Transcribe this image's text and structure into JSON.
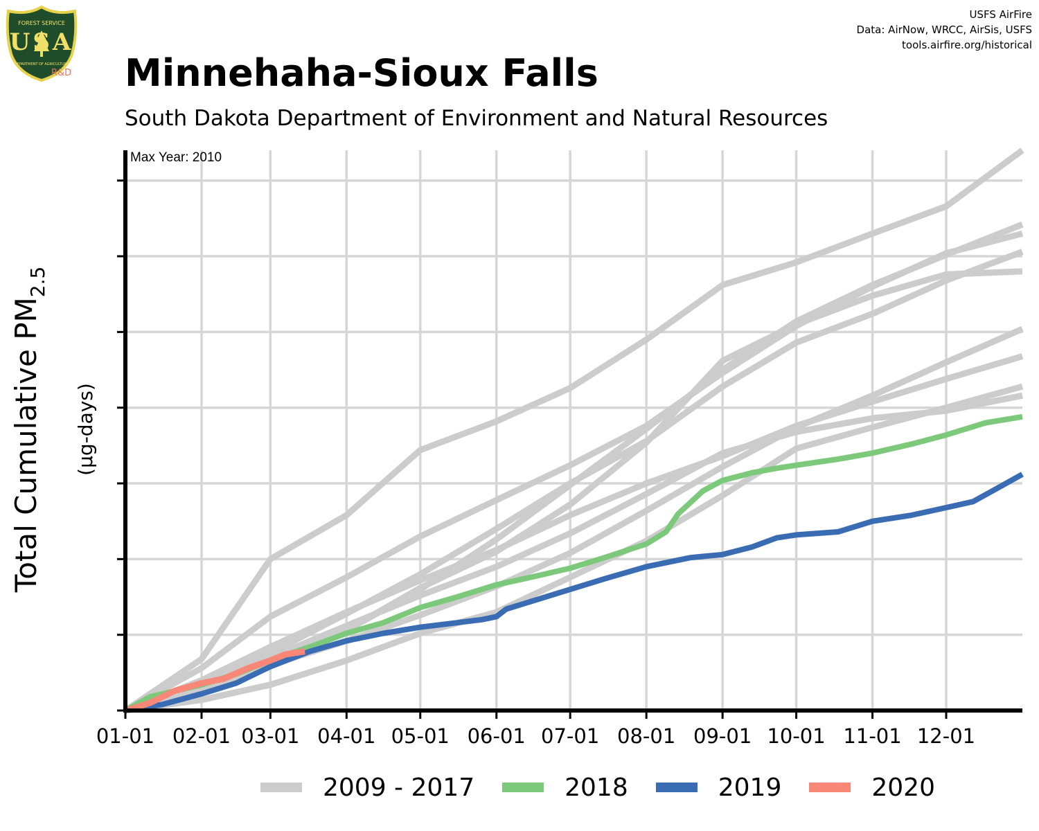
{
  "header": {
    "title": "Minnehaha-Sioux Falls",
    "subtitle": "South Dakota Department of Environment and Natural Resources",
    "credits": [
      "USFS AirFire",
      "Data: AirNow, WRCC, AirSis, USFS",
      "tools.airfire.org/historical"
    ]
  },
  "logo": {
    "top_text": "FOREST SERVICE",
    "letters": "USA",
    "bottom_text": "DEPARTMENT OF AGRICULTURE",
    "badge": "R&D"
  },
  "colors": {
    "history": "#cccccc",
    "y2018": "#7dc97b",
    "y2019": "#3a6cb3",
    "y2020": "#f98778",
    "grid": "#d6d6d6",
    "axis": "#000000"
  },
  "chart_data": {
    "type": "line",
    "annotation": "Max Year: 2010",
    "ylabel": "Total Cumulative PM2.5",
    "ylabel_main": "Total Cumulative PM",
    "ylabel_sub": "2.5",
    "yunits": "(µg-days)",
    "xticks": [
      "01-01",
      "02-01",
      "03-01",
      "04-01",
      "05-01",
      "06-01",
      "07-01",
      "08-01",
      "09-01",
      "10-01",
      "11-01",
      "12-01"
    ],
    "xtick_days": [
      0,
      31,
      59,
      90,
      120,
      151,
      181,
      212,
      243,
      273,
      304,
      334
    ],
    "xlim": [
      0,
      365
    ],
    "ylim": [
      0,
      3700
    ],
    "y_gridlines": [
      0,
      500,
      1000,
      1500,
      2000,
      2500,
      3000,
      3500
    ],
    "legend": [
      "2009 - 2017",
      "2018",
      "2019",
      "2020"
    ],
    "series": [
      {
        "name": "2009 - 2017",
        "group": "history",
        "x": [
          0,
          31,
          59,
          90,
          120,
          151,
          181,
          212,
          243,
          273,
          304,
          334,
          365
        ],
        "y": [
          0,
          200,
          420,
          650,
          860,
          1060,
          1290,
          1500,
          1680,
          1880,
          2040,
          2190,
          2340
        ]
      },
      {
        "name": "2009 - 2017",
        "group": "history",
        "x": [
          0,
          31,
          59,
          90,
          120,
          151,
          181,
          212,
          243,
          273,
          304,
          334,
          365
        ],
        "y": [
          0,
          150,
          340,
          530,
          800,
          1130,
          1490,
          1860,
          2250,
          2570,
          2810,
          3010,
          3210
        ]
      },
      {
        "name": "2009 - 2017",
        "group": "history",
        "x": [
          0,
          31,
          59,
          90,
          120,
          151,
          181,
          212,
          243,
          273,
          304,
          334,
          365
        ],
        "y": [
          0,
          170,
          360,
          530,
          810,
          1050,
          1360,
          1770,
          2310,
          2550,
          2740,
          2880,
          2900
        ]
      },
      {
        "name": "2009 - 2017",
        "group": "history",
        "x": [
          0,
          31,
          59,
          90,
          120,
          151,
          181,
          212,
          243,
          273,
          304,
          334,
          365
        ],
        "y": [
          0,
          280,
          620,
          880,
          1150,
          1390,
          1620,
          1880,
          2230,
          2540,
          2800,
          3020,
          3150
        ]
      },
      {
        "name": "2009 - 2017",
        "group": "history",
        "x": [
          0,
          31,
          59,
          90,
          120,
          151,
          181,
          212,
          243,
          273,
          304,
          334,
          365
        ],
        "y": [
          0,
          170,
          380,
          640,
          900,
          1200,
          1500,
          1780,
          2140,
          2430,
          2620,
          2840,
          3030
        ]
      },
      {
        "name": "2009 - 2017",
        "group": "history",
        "x": [
          0,
          31,
          59,
          90,
          120,
          151,
          181,
          212,
          243,
          273,
          304,
          334,
          365
        ],
        "y": [
          0,
          140,
          300,
          460,
          630,
          820,
          1040,
          1320,
          1610,
          1870,
          2080,
          2300,
          2520
        ]
      },
      {
        "name": "2009 - 2017",
        "group": "history",
        "x": [
          0,
          31,
          59,
          90,
          120,
          151,
          181,
          212,
          243,
          273,
          304,
          334,
          365
        ],
        "y": [
          0,
          70,
          170,
          330,
          510,
          650,
          880,
          1120,
          1420,
          1730,
          1870,
          2000,
          2140
        ]
      },
      {
        "name": "2009 - 2017",
        "group": "history",
        "x": [
          0,
          31,
          59,
          90,
          120,
          151,
          181,
          212,
          243,
          273,
          304,
          334,
          365
        ],
        "y": [
          0,
          340,
          1000,
          1290,
          1720,
          1910,
          2130,
          2450,
          2810,
          2960,
          3150,
          3330,
          3700
        ]
      },
      {
        "name": "2009 - 2017",
        "group": "history",
        "x": [
          0,
          31,
          59,
          90,
          120,
          151,
          181,
          212,
          243,
          273,
          304,
          334,
          365
        ],
        "y": [
          0,
          150,
          350,
          560,
          760,
          950,
          1170,
          1430,
          1700,
          1840,
          1930,
          1980,
          2080
        ]
      },
      {
        "name": "2018",
        "group": "y2018",
        "x": [
          0,
          10,
          31,
          45,
          59,
          75,
          90,
          105,
          120,
          135,
          151,
          165,
          181,
          195,
          212,
          220,
          225,
          235,
          243,
          255,
          265,
          273,
          290,
          304,
          320,
          334,
          350,
          365
        ],
        "y": [
          0,
          90,
          170,
          240,
          330,
          420,
          510,
          580,
          680,
          750,
          830,
          880,
          940,
          1010,
          1100,
          1180,
          1300,
          1450,
          1520,
          1570,
          1600,
          1620,
          1660,
          1700,
          1760,
          1820,
          1900,
          1940
        ]
      },
      {
        "name": "2019",
        "group": "y2019",
        "x": [
          0,
          15,
          31,
          45,
          59,
          75,
          90,
          105,
          120,
          135,
          145,
          151,
          155,
          181,
          195,
          212,
          230,
          243,
          255,
          265,
          273,
          290,
          304,
          320,
          334,
          345,
          355,
          365
        ],
        "y": [
          0,
          40,
          110,
          180,
          290,
          390,
          460,
          510,
          550,
          580,
          600,
          620,
          670,
          800,
          870,
          950,
          1010,
          1030,
          1080,
          1140,
          1160,
          1180,
          1250,
          1290,
          1340,
          1380,
          1470,
          1560
        ]
      },
      {
        "name": "2020",
        "group": "y2020",
        "x": [
          0,
          10,
          20,
          31,
          40,
          50,
          59,
          65,
          73
        ],
        "y": [
          0,
          50,
          130,
          180,
          210,
          280,
          330,
          370,
          390
        ]
      }
    ]
  }
}
